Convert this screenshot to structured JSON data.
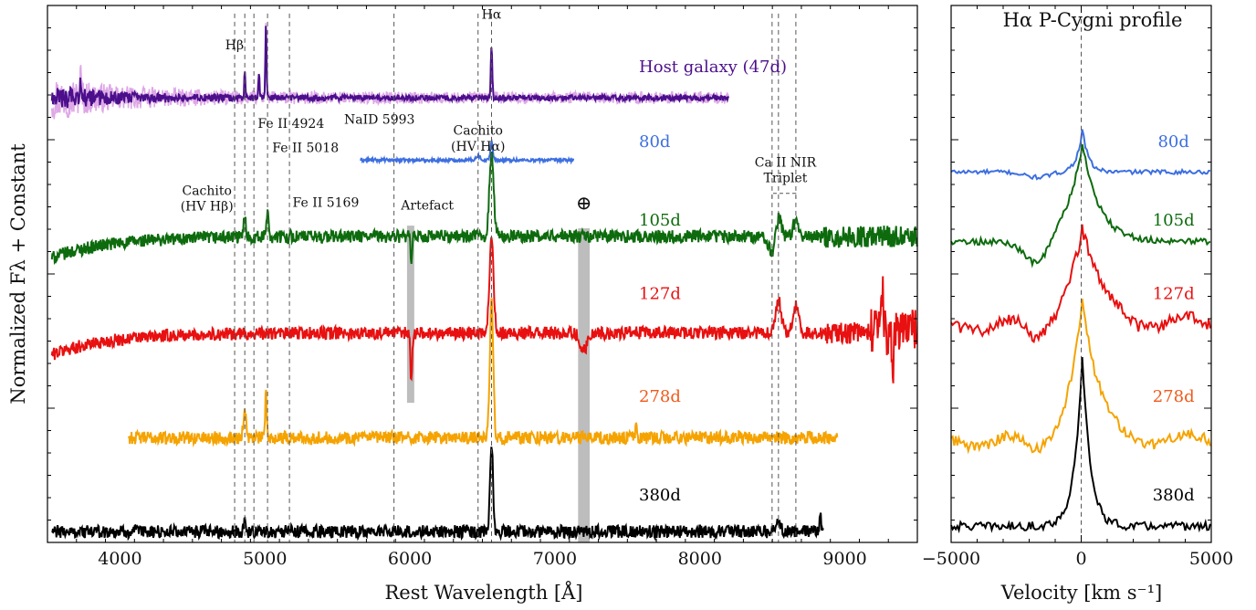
{
  "chart_data": [
    {
      "type": "line",
      "xlabel": "Rest Wavelength [Å]",
      "ylabel": "Normalized Fλ + Constant",
      "xlim": [
        3500,
        9500
      ],
      "ylim": [
        0,
        1
      ],
      "xticks": [
        4000,
        5000,
        6000,
        7000,
        8000,
        9000
      ],
      "xtick_labels": [
        "4000",
        "5000",
        "6000",
        "7000",
        "8000",
        "9000"
      ],
      "grid": false,
      "series": [
        {
          "name": "Host galaxy (47d)",
          "color": "#4b0f8c",
          "color_noise": "#dea7e6",
          "x_range": [
            3530,
            8200
          ],
          "offset": 0.828,
          "features": [
            {
              "x": 3730,
              "h": 0.04,
              "w": 5
            },
            {
              "x": 4861,
              "h": 0.05,
              "w": 4
            },
            {
              "x": 4959,
              "h": 0.045,
              "w": 4
            },
            {
              "x": 5007,
              "h": 0.14,
              "w": 4
            },
            {
              "x": 6563,
              "h": 0.1,
              "w": 5
            }
          ]
        },
        {
          "name": "80d",
          "color": "#3d6fe0",
          "x_range": [
            5660,
            7130
          ],
          "offset": 0.712,
          "features": [
            {
              "x": 6563,
              "h": 0.035,
              "w": 8
            },
            {
              "x": 6470,
              "h": 0.008,
              "w": 15
            }
          ]
        },
        {
          "name": "105d",
          "color": "#0d6b0d",
          "x_range": [
            3530,
            9500
          ],
          "offset": 0.57,
          "features": [
            {
              "x": 4861,
              "h": 0.04,
              "w": 8
            },
            {
              "x": 5018,
              "h": 0.05,
              "w": 8
            },
            {
              "x": 6563,
              "h": 0.15,
              "w": 15
            },
            {
              "x": 6010,
              "h": -0.05,
              "w": 6
            },
            {
              "x": 8500,
              "h": -0.03,
              "w": 25
            },
            {
              "x": 8542,
              "h": 0.04,
              "w": 18
            },
            {
              "x": 8662,
              "h": 0.03,
              "w": 18
            }
          ]
        },
        {
          "name": "127d",
          "color": "#e81010",
          "x_range": [
            3530,
            9500
          ],
          "offset": 0.39,
          "features": [
            {
              "x": 6563,
              "h": 0.18,
              "w": 14
            },
            {
              "x": 6010,
              "h": -0.09,
              "w": 6
            },
            {
              "x": 7200,
              "h": -0.03,
              "w": 25
            },
            {
              "x": 8542,
              "h": 0.06,
              "w": 20
            },
            {
              "x": 8662,
              "h": 0.05,
              "w": 20
            },
            {
              "x": 9330,
              "h": -0.07,
              "w": 8
            },
            {
              "x": 9260,
              "h": 0.09,
              "w": 6
            }
          ]
        },
        {
          "name": "278d",
          "color": "#f5a300",
          "x_range": [
            4060,
            8950
          ],
          "offset": 0.195,
          "features": [
            {
              "x": 4861,
              "h": 0.05,
              "w": 10
            },
            {
              "x": 5007,
              "h": 0.08,
              "w": 6
            },
            {
              "x": 6563,
              "h": 0.25,
              "w": 12
            },
            {
              "x": 7560,
              "h": 0.03,
              "w": 5
            }
          ]
        },
        {
          "name": "380d",
          "color": "#000000",
          "x_range": [
            3530,
            8850
          ],
          "offset": 0.02,
          "features": [
            {
              "x": 4861,
              "h": 0.025,
              "w": 6
            },
            {
              "x": 6563,
              "h": 0.17,
              "w": 10
            },
            {
              "x": 8542,
              "h": 0.02,
              "w": 12
            },
            {
              "x": 8830,
              "h": 0.04,
              "w": 5
            }
          ]
        }
      ],
      "vlines": [
        {
          "x": 4791
        },
        {
          "x": 4861
        },
        {
          "x": 4924
        },
        {
          "x": 5018
        },
        {
          "x": 5169
        },
        {
          "x": 5890
        },
        {
          "x": 6470
        },
        {
          "x": 6563
        },
        {
          "x": 8498
        },
        {
          "x": 8542
        },
        {
          "x": 8662
        }
      ],
      "shaded": [
        {
          "x0": 5980,
          "x1": 6030
        },
        {
          "x0": 7160,
          "x1": 7240
        }
      ],
      "annotations": [
        {
          "text": "Hα",
          "x": 6563,
          "y": 0.975
        },
        {
          "text": "Hβ",
          "x": 4790,
          "y": 0.918
        },
        {
          "text": "Fe II 4924",
          "x": 5180,
          "y": 0.772
        },
        {
          "text": "Fe II 5018",
          "x": 5280,
          "y": 0.727
        },
        {
          "text": "Fe II 5169",
          "x": 5420,
          "y": 0.625
        },
        {
          "text": "NaID 5993",
          "x": 5790,
          "y": 0.78
        },
        {
          "text": "Cachito",
          "x": 6470,
          "y": 0.759
        },
        {
          "text": "(HV Hα)",
          "x": 6470,
          "y": 0.73
        },
        {
          "text": "Cachito",
          "x": 4600,
          "y": 0.647
        },
        {
          "text": "(HV Hβ)",
          "x": 4600,
          "y": 0.618
        },
        {
          "text": "Artefact",
          "x": 6120,
          "y": 0.62
        },
        {
          "text": "⊕",
          "x": 7200,
          "y": 0.62
        },
        {
          "text": "Ca II NIR",
          "x": 8590,
          "y": 0.7
        },
        {
          "text": "Triplet",
          "x": 8590,
          "y": 0.671
        }
      ],
      "labels": [
        {
          "text": "Host galaxy (47d)",
          "x": 7580,
          "y": 0.876,
          "color": "#4b0f8c"
        },
        {
          "text": "80d",
          "x": 7580,
          "y": 0.736,
          "color": "#3d6fe0"
        },
        {
          "text": "105d",
          "x": 7580,
          "y": 0.59,
          "color": "#0d6b0d"
        },
        {
          "text": "127d",
          "x": 7580,
          "y": 0.453,
          "color": "#e81010"
        },
        {
          "text": "278d",
          "x": 7580,
          "y": 0.262,
          "color": "#f05a1a"
        },
        {
          "text": "380d",
          "x": 7580,
          "y": 0.078,
          "color": "#000000"
        }
      ]
    },
    {
      "type": "line",
      "title": "Hα P-Cygni profile",
      "xlabel": "Velocity [km s⁻¹]",
      "xlim": [
        -5000,
        5000
      ],
      "ylim": [
        0,
        1
      ],
      "xticks": [
        -5000,
        0,
        5000
      ],
      "xtick_labels": [
        "−5000",
        "0",
        "5000"
      ],
      "vline_x": 0,
      "grid": false,
      "series": [
        {
          "name": "80d",
          "color": "#3d6fe0",
          "offset": 0.69,
          "peak": 0.08,
          "width": 220,
          "trough": 0.01,
          "noise": 0.004
        },
        {
          "name": "105d",
          "color": "#0d6b0d",
          "offset": 0.56,
          "peak": 0.18,
          "width": 650,
          "trough": 0.05,
          "noise": 0.006
        },
        {
          "name": "127d",
          "color": "#e81010",
          "offset": 0.405,
          "peak": 0.18,
          "width": 750,
          "trough": 0.04,
          "noise": 0.012
        },
        {
          "name": "278d",
          "color": "#f5a300",
          "offset": 0.19,
          "peak": 0.26,
          "width": 600,
          "trough": 0.03,
          "noise": 0.01
        },
        {
          "name": "380d",
          "color": "#000000",
          "offset": 0.03,
          "peak": 0.32,
          "width": 300,
          "trough": 0.0,
          "noise": 0.008
        }
      ],
      "labels": [
        {
          "text": "80d",
          "x": 3550,
          "y": 0.736,
          "color": "#3d6fe0"
        },
        {
          "text": "105d",
          "x": 3550,
          "y": 0.59,
          "color": "#0d6b0d"
        },
        {
          "text": "127d",
          "x": 3550,
          "y": 0.453,
          "color": "#e81010"
        },
        {
          "text": "278d",
          "x": 3550,
          "y": 0.262,
          "color": "#f05a1a"
        },
        {
          "text": "380d",
          "x": 3550,
          "y": 0.078,
          "color": "#000000"
        }
      ]
    }
  ]
}
